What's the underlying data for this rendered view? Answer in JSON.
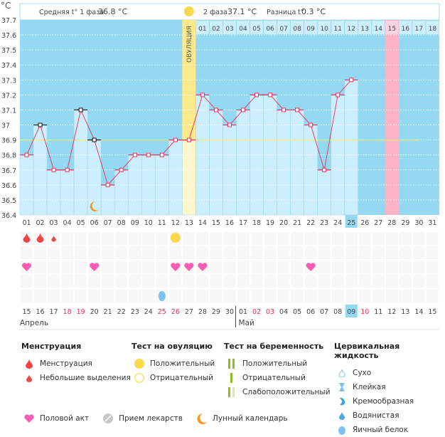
{
  "unit_label": "°C",
  "header": {
    "phase1_label": "Средняя t° 1 фаза",
    "phase1_value": "36.8 °C",
    "phase2_label": "2 фаза",
    "phase2_value": "37.1 °C",
    "diff_label": "Разница t°",
    "diff_value": "0.3 °C",
    "ovulation_label": "ОВУЛЯЦИЯ"
  },
  "colors": {
    "bg_above": "#94d8f2",
    "bar": "#cdeefc",
    "line": "#e8305a",
    "coverline": "#f5ec8a",
    "ovulation": "#fde98c",
    "highlight_pink": "#fbb3c6",
    "today": "#94d8f2"
  },
  "chart_data": {
    "type": "line",
    "ylim": [
      36.4,
      37.7
    ],
    "yticks": [
      "37.7",
      "37.6",
      "37.5",
      "37.4",
      "37.3",
      "37.2",
      "37.1",
      "37",
      "36.9",
      "36.8",
      "36.7",
      "36.6",
      "36.5",
      "36.4"
    ],
    "cycle_days": [
      "01",
      "02",
      "03",
      "04",
      "05",
      "06",
      "07",
      "08",
      "09",
      "10",
      "11",
      "12",
      "13",
      "14",
      "15",
      "16",
      "17",
      "18",
      "19",
      "20",
      "21",
      "22",
      "23",
      "24",
      "25",
      "26",
      "27",
      "28",
      "29",
      "30",
      "31"
    ],
    "temperatures": [
      36.8,
      37.0,
      36.7,
      36.7,
      37.1,
      36.9,
      36.6,
      36.7,
      36.8,
      36.8,
      36.8,
      36.9,
      36.9,
      37.2,
      37.1,
      37.0,
      37.1,
      37.2,
      37.2,
      37.1,
      37.1,
      37.0,
      36.7,
      37.2,
      37.3
    ],
    "excluded_days": [
      2,
      5,
      6
    ],
    "coverline": 36.9,
    "ovulation_day": 13,
    "post_ovulation_labels": [
      "01",
      "02",
      "03",
      "04",
      "05",
      "06",
      "07",
      "08",
      "09",
      "10",
      "11",
      "12",
      "13",
      "14",
      "15",
      "16",
      "17",
      "18"
    ],
    "pink_day": 28,
    "today_day": 25,
    "moon_day": 6,
    "dates": [
      "15",
      "16",
      "17",
      "18",
      "19",
      "20",
      "21",
      "22",
      "23",
      "24",
      "25",
      "26",
      "27",
      "28",
      "29",
      "30",
      "01",
      "02",
      "03",
      "04",
      "05",
      "06",
      "07",
      "08",
      "09",
      "10",
      "11",
      "12",
      "13",
      "14",
      "15"
    ],
    "weekend_indices": [
      3,
      4,
      10,
      11,
      17,
      18,
      25
    ],
    "months": [
      "Апрель",
      "Май"
    ],
    "month_break_index": 16,
    "menstruation_days": [
      1,
      2
    ],
    "spotting_days": [
      3
    ],
    "ovulation_test_positive_days": [
      12
    ],
    "intercourse_days": [
      1,
      6,
      12,
      13,
      14,
      22
    ],
    "eggwhite_days": [
      11
    ]
  },
  "legend": {
    "menstruation": {
      "title": "Менструация",
      "items": [
        "Менструация",
        "Небольшие выделения"
      ]
    },
    "ovulation_test": {
      "title": "Тест на овуляцию",
      "items": [
        "Положительный",
        "Отрицательный"
      ]
    },
    "pregnancy_test": {
      "title": "Тест на беременность",
      "items": [
        "Положительный",
        "Отрицательный",
        "Слабоположительный"
      ]
    },
    "cervical": {
      "title": "Цервикальная жидкость",
      "items": [
        "Сухо",
        "Клейкая",
        "Кремообразная",
        "Водянистая",
        "Яичный белок"
      ]
    },
    "other": [
      "Половой акт",
      "Прием лекарств",
      "Лунный календарь"
    ]
  }
}
